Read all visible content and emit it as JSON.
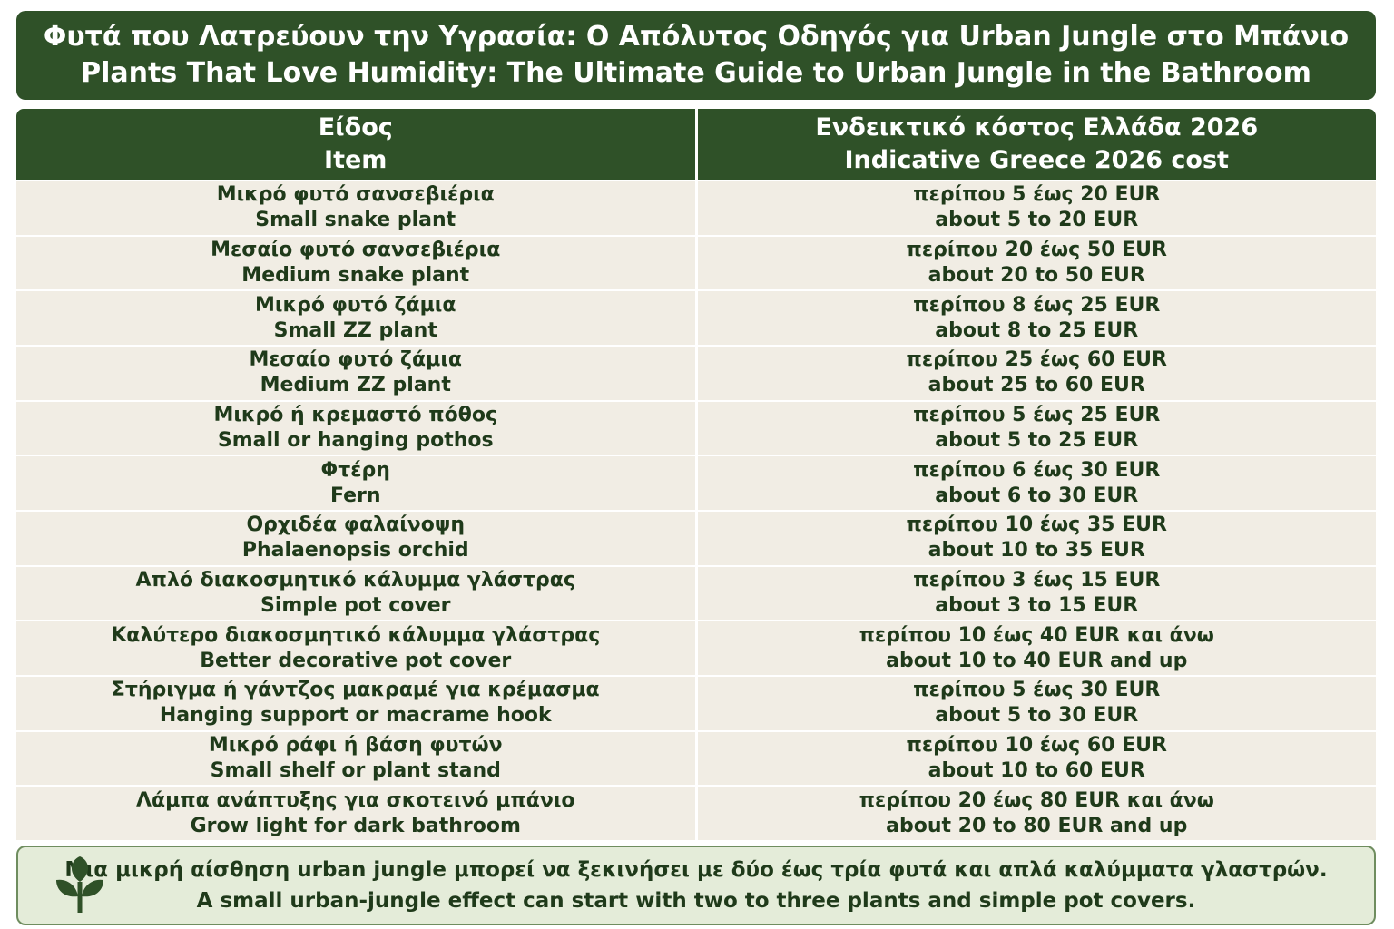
{
  "title": [
    "Φυτά που Λατρεύουν την Υγρασία: Ο Απόλυτος Οδηγός για Urban Jungle στο Μπάνιο",
    "Plants That Love Humidity: The Ultimate Guide to Urban Jungle in the Bathroom"
  ],
  "table": {
    "header": [
      [
        "Είδος",
        "Item"
      ],
      [
        "Ενδεικτικό κόστος Ελλάδα 2026",
        "Indicative Greece 2026 cost"
      ]
    ],
    "rows": [
      [
        [
          "Μικρό φυτό σανσεβιέρια",
          "Small snake plant"
        ],
        [
          "περίπου 5 έως 20 EUR",
          "about 5 to 20 EUR"
        ]
      ],
      [
        [
          "Μεσαίο φυτό σανσεβιέρια",
          "Medium snake plant"
        ],
        [
          "περίπου 20 έως 50 EUR",
          "about 20 to 50 EUR"
        ]
      ],
      [
        [
          "Μικρό φυτό ζάμια",
          "Small ZZ plant"
        ],
        [
          "περίπου 8 έως 25 EUR",
          "about 8 to 25 EUR"
        ]
      ],
      [
        [
          "Μεσαίο φυτό ζάμια",
          "Medium ZZ plant"
        ],
        [
          "περίπου 25 έως 60 EUR",
          "about 25 to 60 EUR"
        ]
      ],
      [
        [
          "Μικρό ή κρεμαστό πόθος",
          "Small or hanging pothos"
        ],
        [
          "περίπου 5 έως 25 EUR",
          "about 5 to 25 EUR"
        ]
      ],
      [
        [
          "Φτέρη",
          "Fern"
        ],
        [
          "περίπου 6 έως 30 EUR",
          "about 6 to 30 EUR"
        ]
      ],
      [
        [
          "Ορχιδέα φαλαίνοψη",
          "Phalaenopsis orchid"
        ],
        [
          "περίπου 10 έως 35 EUR",
          "about 10 to 35 EUR"
        ]
      ],
      [
        [
          "Απλό διακοσμητικό κάλυμμα γλάστρας",
          "Simple pot cover"
        ],
        [
          "περίπου 3 έως 15 EUR",
          "about 3 to 15 EUR"
        ]
      ],
      [
        [
          "Καλύτερο διακοσμητικό κάλυμμα γλάστρας",
          "Better decorative pot cover"
        ],
        [
          "περίπου 10 έως 40 EUR και άνω",
          "about 10 to 40 EUR and up"
        ]
      ],
      [
        [
          "Στήριγμα ή γάντζος μακραμέ για κρέμασμα",
          "Hanging support or macrame hook"
        ],
        [
          "περίπου 5 έως 30 EUR",
          "about 5 to 30 EUR"
        ]
      ],
      [
        [
          "Μικρό ράφι ή βάση φυτών",
          "Small shelf or plant stand"
        ],
        [
          "περίπου 10 έως 60 EUR",
          "about 10 to 60 EUR"
        ]
      ],
      [
        [
          "Λάμπα ανάπτυξης για σκοτεινό μπάνιο",
          "Grow light for dark bathroom"
        ],
        [
          "περίπου 20 έως 80 EUR και άνω",
          "about 20 to 80 EUR and up"
        ]
      ]
    ]
  },
  "note": [
    "Μια μικρή αίσθηση urban jungle μπορεί να ξεκινήσει με δύο έως τρία φυτά και απλά καλύμματα γλαστρών.",
    "A small urban-jungle effect can start with two to three plants and simple pot covers."
  ]
}
